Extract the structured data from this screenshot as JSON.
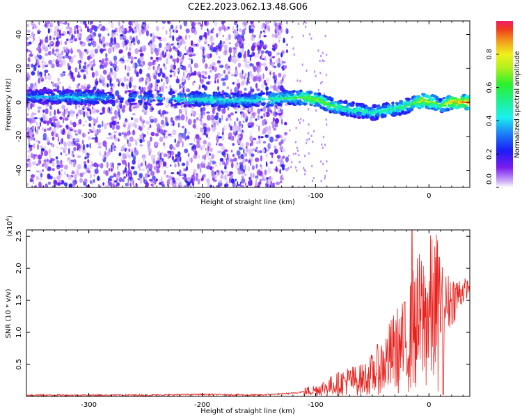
{
  "title": "C2E2.2023.062.13.48.G06",
  "colors": {
    "top_cloud": "#7c1cf0",
    "snr_line": "#e8201c",
    "axes": "#000000"
  },
  "chart_data": [
    {
      "type": "heatmap",
      "xlabel": "Height of straight line (km)",
      "ylabel": "Frequency (Hz)",
      "xlim": [
        -355,
        36
      ],
      "ylim": [
        -50,
        48
      ],
      "xticks": [
        -300,
        -200,
        -100,
        0
      ],
      "yticks": [
        -40,
        -20,
        0,
        20,
        40
      ],
      "colorbar": {
        "label": "Normalized spectral amplitude",
        "range": [
          0.0,
          1.0
        ],
        "ticks": [
          0.0,
          0.2,
          0.4,
          0.6,
          0.8
        ],
        "colormap": "rainbow"
      },
      "noise_region_x": [
        -355,
        -125
      ],
      "ridge": [
        {
          "x": -355,
          "freq": 3.5,
          "amp": 0.35
        },
        {
          "x": -300,
          "freq": 3,
          "amp": 0.45
        },
        {
          "x": -280,
          "freq": 3,
          "amp": 0.3
        },
        {
          "x": -200,
          "freq": 2,
          "amp": 0.5
        },
        {
          "x": -160,
          "freq": 1,
          "amp": 0.45
        },
        {
          "x": -130,
          "freq": 2.5,
          "amp": 0.55
        },
        {
          "x": -110,
          "freq": 3,
          "amp": 0.65
        },
        {
          "x": -100,
          "freq": 2,
          "amp": 0.7
        },
        {
          "x": -85,
          "freq": -2,
          "amp": 0.6
        },
        {
          "x": -70,
          "freq": -4,
          "amp": 0.5
        },
        {
          "x": -50,
          "freq": -6,
          "amp": 0.5
        },
        {
          "x": -30,
          "freq": -4,
          "amp": 0.55
        },
        {
          "x": -15,
          "freq": -1,
          "amp": 0.6
        },
        {
          "x": -5,
          "freq": 1,
          "amp": 0.8
        },
        {
          "x": 5,
          "freq": 0,
          "amp": 0.7
        },
        {
          "x": 10,
          "freq": -2,
          "amp": 0.6
        },
        {
          "x": 20,
          "freq": 0.5,
          "amp": 0.85
        },
        {
          "x": 36,
          "freq": 0,
          "amp": 0.95
        }
      ]
    },
    {
      "type": "line",
      "xlabel": "Height of straight line (km)",
      "ylabel": "SNR (10 * v/v)",
      "scale_label": "(x10",
      "scale_exponent": "4",
      "xlim": [
        -355,
        36
      ],
      "ylim": [
        0,
        2.6
      ],
      "xticks": [
        -300,
        -200,
        -100,
        0
      ],
      "yticks": [
        0.5,
        1.0,
        1.5,
        2.0,
        2.5
      ],
      "series": [
        {
          "x": [
            -355,
            -300,
            -250,
            -200,
            -150,
            -120,
            -100,
            -90,
            -80,
            -70,
            -60,
            -50,
            -40,
            -30,
            -20,
            -15,
            -10,
            -5,
            0,
            10,
            20,
            30,
            36
          ],
          "y": [
            0.02,
            0.02,
            0.02,
            0.03,
            0.02,
            0.05,
            0.1,
            0.15,
            0.2,
            0.25,
            0.25,
            0.35,
            0.5,
            0.7,
            0.8,
            1.0,
            1.15,
            1.2,
            1.3,
            1.35,
            1.5,
            1.65,
            1.72
          ],
          "peaks": [
            {
              "x": -15,
              "y": 2.6
            },
            {
              "x": 12,
              "y": 2.02
            },
            {
              "x": -60,
              "y": 0.5
            },
            {
              "x": -40,
              "y": 0.7
            }
          ]
        }
      ]
    }
  ]
}
